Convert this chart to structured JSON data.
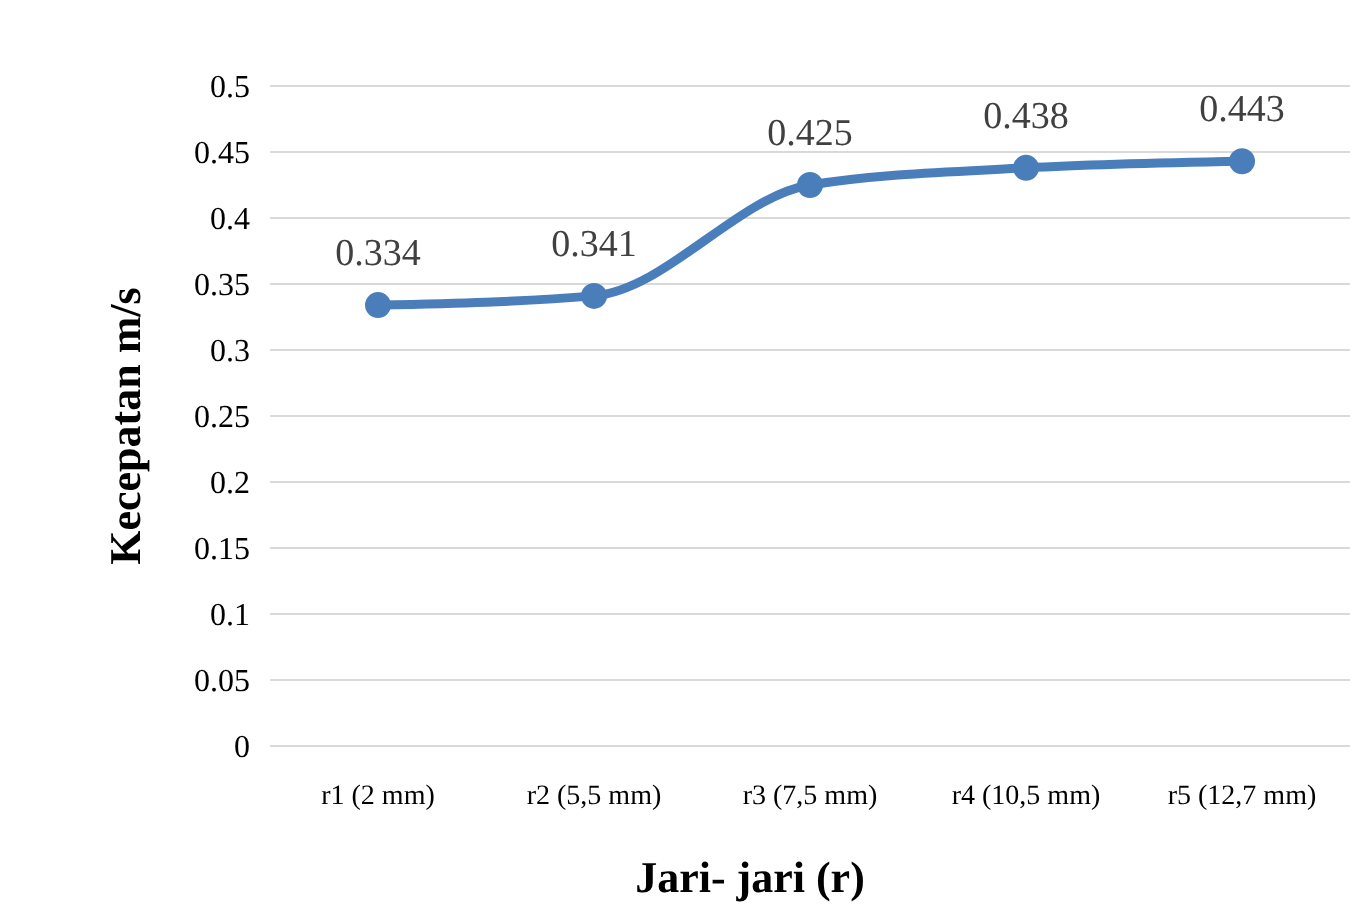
{
  "chart_data": {
    "type": "line",
    "xlabel": "Jari- jari (r)",
    "ylabel": "Kecepatan m/s",
    "categories": [
      "r1 (2 mm)",
      "r2 (5,5 mm)",
      "r3 (7,5 mm)",
      "r4 (10,5 mm)",
      "r5 (12,7 mm)"
    ],
    "series": [
      {
        "color": "#4a7ebb",
        "values": [
          0.334,
          0.341,
          0.425,
          0.438,
          0.443
        ]
      }
    ],
    "ylim": [
      0,
      0.5
    ],
    "yticks": [
      0,
      0.05,
      0.1,
      0.15,
      0.2,
      0.25,
      0.3,
      0.35,
      0.4,
      0.45,
      0.5
    ],
    "grid": "y",
    "marker": "circle",
    "line_style": "solid",
    "data_labels": true
  }
}
